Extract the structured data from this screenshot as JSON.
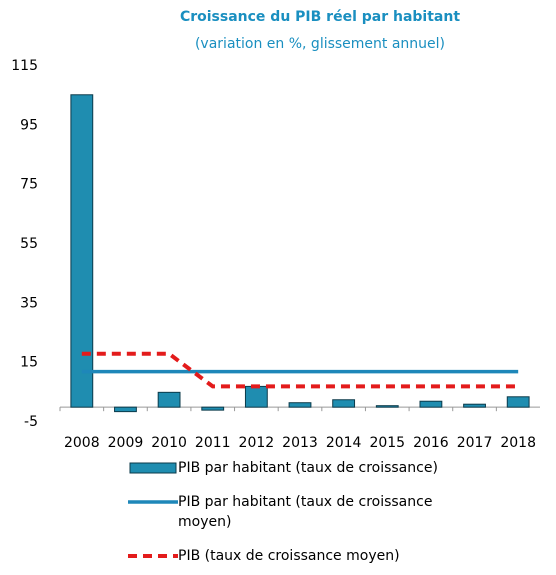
{
  "chart_data": {
    "type": "bar",
    "title": "Croissance du PIB réel par habitant",
    "subtitle": "(variation en %, glissement annuel)",
    "categories": [
      "2008",
      "2009",
      "2010",
      "2011",
      "2012",
      "2013",
      "2014",
      "2015",
      "2016",
      "2017",
      "2018"
    ],
    "series": [
      {
        "name": "PIB par habitant (taux de croissance)",
        "type": "bar",
        "color": "#1f8db0",
        "values": [
          105.3,
          -1.5,
          5,
          -1,
          7,
          1.5,
          2.5,
          0.5,
          2,
          1,
          3.5
        ]
      },
      {
        "name": "PIB par habitant (taux de croissance moyen)",
        "type": "line",
        "color": "#1e87b9",
        "values": [
          12,
          12,
          12,
          12,
          12,
          12,
          12,
          12,
          12,
          12,
          12
        ]
      },
      {
        "name": "PIB (taux de croissance moyen)",
        "type": "line",
        "dashed": true,
        "color": "#e31b1b",
        "values": [
          18,
          18,
          18,
          7,
          7,
          7,
          7,
          7,
          7,
          7,
          7
        ]
      }
    ],
    "ylim": [
      -5,
      115
    ],
    "yticks": [
      -5,
      15,
      35,
      55,
      75,
      95,
      115
    ]
  }
}
